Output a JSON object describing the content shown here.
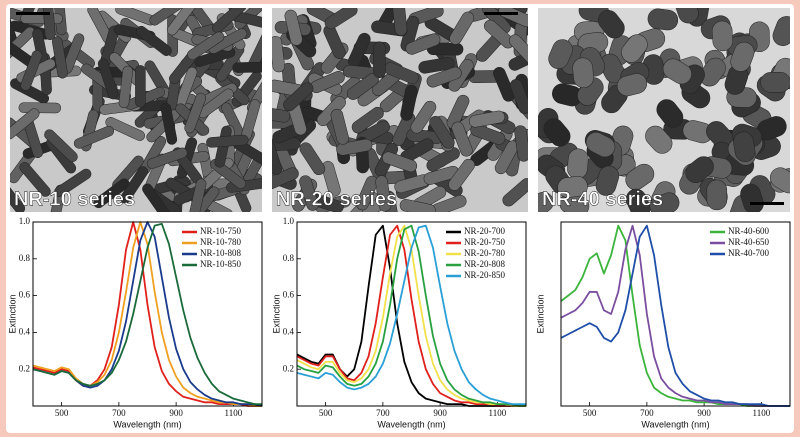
{
  "panels": [
    {
      "label": "NR-10 series"
    },
    {
      "label": "NR-20 series"
    },
    {
      "label": "NR-40 series"
    }
  ],
  "chart_data": [
    {
      "type": "line",
      "xlabel": "Wavelength (nm)",
      "ylabel": "Extinction",
      "legend": "upper right",
      "xlim": [
        400,
        1200
      ],
      "ylim": [
        0,
        1
      ],
      "xticks": [
        500,
        700,
        900,
        1100
      ],
      "yticks": [
        0.2,
        0.4,
        0.6,
        0.8,
        {
          "value": 1,
          "label": "1.0"
        }
      ],
      "x": [
        400,
        425,
        450,
        475,
        500,
        525,
        550,
        575,
        600,
        625,
        650,
        675,
        700,
        725,
        750,
        775,
        800,
        825,
        850,
        875,
        900,
        925,
        950,
        975,
        1000,
        1025,
        1050,
        1075,
        1100,
        1125,
        1150,
        1175,
        1200
      ],
      "series": [
        {
          "name": "NR-10-750",
          "color": "#e0201b",
          "values": [
            0.21,
            0.2,
            0.19,
            0.18,
            0.2,
            0.19,
            0.14,
            0.11,
            0.11,
            0.14,
            0.2,
            0.32,
            0.55,
            0.85,
            1.0,
            0.85,
            0.55,
            0.32,
            0.19,
            0.12,
            0.08,
            0.05,
            0.04,
            0.03,
            0.02,
            0.02,
            0.01,
            0.01,
            0.01,
            0.01,
            0,
            0,
            0
          ]
        },
        {
          "name": "NR-10-780",
          "color": "#f0a020",
          "values": [
            0.22,
            0.21,
            0.2,
            0.19,
            0.21,
            0.2,
            0.15,
            0.12,
            0.11,
            0.13,
            0.17,
            0.25,
            0.4,
            0.62,
            0.86,
            1.0,
            0.88,
            0.62,
            0.4,
            0.25,
            0.16,
            0.1,
            0.07,
            0.05,
            0.04,
            0.03,
            0.02,
            0.02,
            0.01,
            0.01,
            0.01,
            0,
            0
          ]
        },
        {
          "name": "NR-10-808",
          "color": "#1a3a8c",
          "values": [
            0.2,
            0.19,
            0.18,
            0.17,
            0.19,
            0.18,
            0.14,
            0.11,
            0.1,
            0.11,
            0.14,
            0.2,
            0.3,
            0.46,
            0.68,
            0.9,
            1.0,
            0.92,
            0.7,
            0.48,
            0.31,
            0.2,
            0.13,
            0.09,
            0.06,
            0.04,
            0.03,
            0.02,
            0.02,
            0.01,
            0.01,
            0.01,
            0
          ]
        },
        {
          "name": "NR-10-850",
          "color": "#1b6b3a",
          "values": [
            0.2,
            0.19,
            0.18,
            0.17,
            0.19,
            0.18,
            0.14,
            0.12,
            0.11,
            0.12,
            0.14,
            0.18,
            0.25,
            0.35,
            0.5,
            0.68,
            0.86,
            0.98,
            0.99,
            0.88,
            0.7,
            0.52,
            0.37,
            0.26,
            0.18,
            0.12,
            0.08,
            0.06,
            0.04,
            0.03,
            0.02,
            0.01,
            0.01
          ]
        }
      ]
    },
    {
      "type": "line",
      "xlabel": "Wavelength (nm)",
      "ylabel": "Extinction",
      "legend": "upper right",
      "xlim": [
        400,
        1200
      ],
      "ylim": [
        0,
        1
      ],
      "xticks": [
        500,
        700,
        900,
        1100
      ],
      "yticks": [
        0.2,
        0.4,
        0.6,
        0.8,
        {
          "value": 1,
          "label": "1.0"
        }
      ],
      "x": [
        400,
        425,
        450,
        475,
        500,
        525,
        550,
        575,
        600,
        625,
        650,
        675,
        700,
        725,
        750,
        775,
        800,
        825,
        850,
        875,
        900,
        925,
        950,
        975,
        1000,
        1025,
        1050,
        1075,
        1100,
        1125,
        1150,
        1175,
        1200
      ],
      "series": [
        {
          "name": "NR-20-700",
          "color": "#000000",
          "values": [
            0.28,
            0.26,
            0.24,
            0.23,
            0.28,
            0.28,
            0.2,
            0.16,
            0.2,
            0.35,
            0.65,
            0.93,
            0.98,
            0.75,
            0.45,
            0.24,
            0.13,
            0.07,
            0.04,
            0.03,
            0.02,
            0.01,
            0.01,
            0.01,
            0,
            0,
            0,
            0,
            0,
            0,
            0,
            0,
            0
          ]
        },
        {
          "name": "NR-20-750",
          "color": "#e0201b",
          "values": [
            0.27,
            0.25,
            0.23,
            0.22,
            0.27,
            0.27,
            0.2,
            0.15,
            0.14,
            0.18,
            0.27,
            0.45,
            0.7,
            0.93,
            0.98,
            0.85,
            0.58,
            0.35,
            0.2,
            0.12,
            0.07,
            0.05,
            0.03,
            0.02,
            0.02,
            0.01,
            0.01,
            0.01,
            0,
            0,
            0,
            0,
            0
          ]
        },
        {
          "name": "NR-20-780",
          "color": "#f2e14a",
          "values": [
            0.25,
            0.23,
            0.21,
            0.2,
            0.24,
            0.24,
            0.18,
            0.14,
            0.13,
            0.15,
            0.2,
            0.3,
            0.48,
            0.72,
            0.92,
            0.98,
            0.85,
            0.6,
            0.38,
            0.23,
            0.14,
            0.09,
            0.06,
            0.04,
            0.03,
            0.02,
            0.02,
            0.01,
            0.01,
            0.01,
            0,
            0,
            0
          ]
        },
        {
          "name": "NR-20-808",
          "color": "#28a040",
          "values": [
            0.22,
            0.2,
            0.19,
            0.18,
            0.22,
            0.21,
            0.16,
            0.12,
            0.11,
            0.12,
            0.16,
            0.23,
            0.35,
            0.55,
            0.8,
            0.96,
            0.98,
            0.84,
            0.6,
            0.38,
            0.23,
            0.14,
            0.09,
            0.06,
            0.04,
            0.03,
            0.02,
            0.02,
            0.01,
            0.01,
            0.01,
            0,
            0
          ]
        },
        {
          "name": "NR-20-850",
          "color": "#2a9fd6",
          "values": [
            0.18,
            0.17,
            0.16,
            0.15,
            0.18,
            0.17,
            0.13,
            0.1,
            0.09,
            0.1,
            0.12,
            0.16,
            0.23,
            0.34,
            0.5,
            0.68,
            0.86,
            0.97,
            0.98,
            0.86,
            0.65,
            0.45,
            0.3,
            0.2,
            0.13,
            0.09,
            0.06,
            0.04,
            0.03,
            0.02,
            0.01,
            0.01,
            0.01
          ]
        }
      ]
    },
    {
      "type": "line",
      "xlabel": "Wavelength (nm)",
      "ylabel": "Extinction",
      "legend": "upper right",
      "xlim": [
        400,
        1200
      ],
      "ylim": [
        0,
        1
      ],
      "xticks": [
        500,
        700,
        900,
        1100
      ],
      "x": [
        400,
        425,
        450,
        475,
        500,
        525,
        550,
        575,
        600,
        625,
        650,
        675,
        700,
        725,
        750,
        775,
        800,
        825,
        850,
        875,
        900,
        925,
        950,
        975,
        1000,
        1025,
        1050,
        1075,
        1100,
        1125,
        1150,
        1175,
        1200
      ],
      "series": [
        {
          "name": "NR-40-600",
          "color": "#3cb43c",
          "values": [
            0.57,
            0.6,
            0.63,
            0.7,
            0.8,
            0.83,
            0.72,
            0.82,
            0.98,
            0.9,
            0.6,
            0.33,
            0.18,
            0.1,
            0.07,
            0.05,
            0.04,
            0.03,
            0.03,
            0.02,
            0.02,
            0.02,
            0.01,
            0.01,
            0.01,
            0.01,
            0,
            0,
            0,
            0,
            0,
            0,
            0
          ]
        },
        {
          "name": "NR-40-650",
          "color": "#7b4fa0",
          "values": [
            0.48,
            0.5,
            0.52,
            0.56,
            0.62,
            0.62,
            0.52,
            0.5,
            0.62,
            0.85,
            0.98,
            0.82,
            0.5,
            0.27,
            0.15,
            0.1,
            0.07,
            0.05,
            0.04,
            0.03,
            0.03,
            0.02,
            0.02,
            0.01,
            0.01,
            0.01,
            0.01,
            0,
            0,
            0,
            0,
            0,
            0
          ]
        },
        {
          "name": "NR-40-700",
          "color": "#1f4fa8",
          "values": [
            0.37,
            0.39,
            0.41,
            0.43,
            0.45,
            0.43,
            0.37,
            0.35,
            0.4,
            0.52,
            0.72,
            0.92,
            0.98,
            0.82,
            0.55,
            0.32,
            0.18,
            0.12,
            0.08,
            0.06,
            0.04,
            0.03,
            0.03,
            0.02,
            0.02,
            0.01,
            0.01,
            0.01,
            0.01,
            0,
            0,
            0,
            0
          ]
        }
      ]
    }
  ]
}
